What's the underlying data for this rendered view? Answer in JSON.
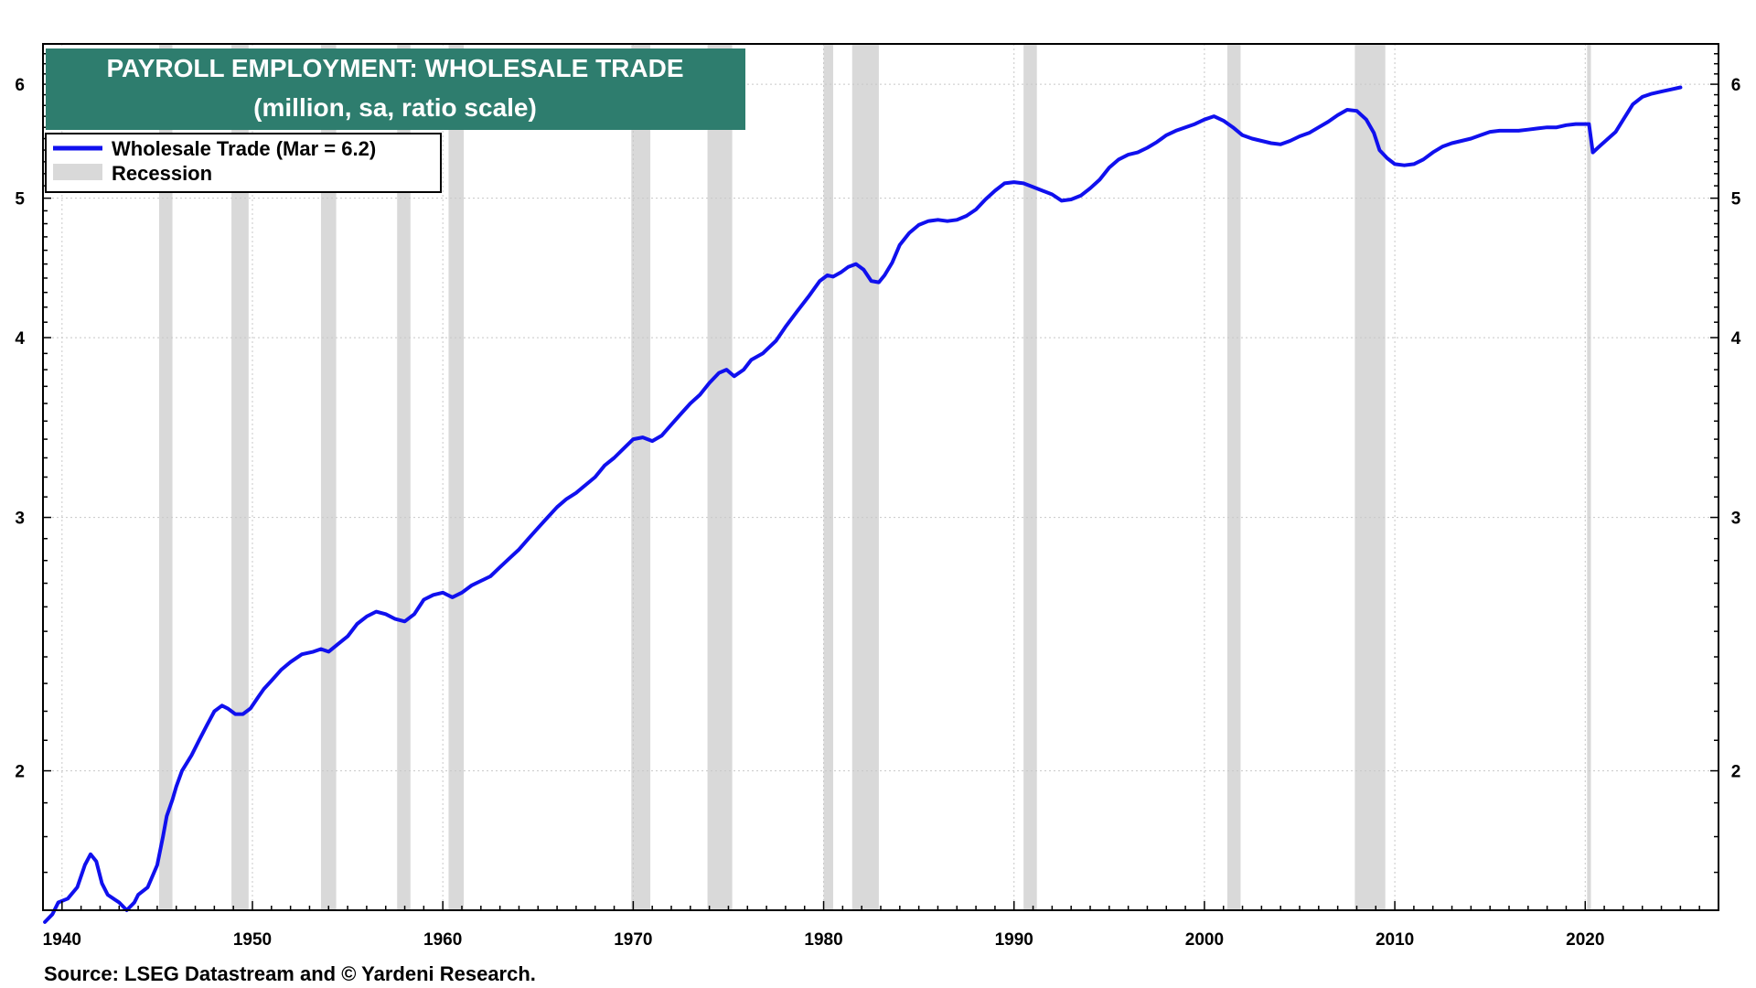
{
  "colors": {
    "line": "#1010ee",
    "recession": "#d9d9d9",
    "title_bg": "#2e7d6e",
    "title_text": "#ffffff",
    "grid": "#c8c8c8"
  },
  "chart_data": {
    "type": "line",
    "title": "PAYROLL EMPLOYMENT: WHOLESALE TRADE",
    "subtitle": "(million, sa, ratio scale)",
    "yscale": "log",
    "xlim": [
      1939.0,
      2027.0
    ],
    "ylim": [
      1.6,
      6.4
    ],
    "x_ticks": [
      1940,
      1950,
      1960,
      1970,
      1980,
      1990,
      2000,
      2010,
      2020
    ],
    "x_tick_labels": [
      "1940",
      "1950",
      "1960",
      "1970",
      "1980",
      "1990",
      "2000",
      "2010",
      "2020"
    ],
    "y_ticks": [
      2,
      3,
      4,
      5,
      6
    ],
    "y_tick_labels": [
      "2",
      "3",
      "4",
      "5",
      "6"
    ],
    "legend": {
      "position": "top-left",
      "entries": [
        {
          "label": "Wholesale Trade (Mar = 6.2)",
          "kind": "line"
        },
        {
          "label": "Recession",
          "kind": "box"
        }
      ]
    },
    "recessions": [
      [
        1945.1,
        1945.8
      ],
      [
        1948.9,
        1949.8
      ],
      [
        1953.6,
        1954.4
      ],
      [
        1957.6,
        1958.3
      ],
      [
        1960.3,
        1961.1
      ],
      [
        1969.9,
        1970.9
      ],
      [
        1973.9,
        1975.2
      ],
      [
        1980.0,
        1980.5
      ],
      [
        1981.5,
        1982.9
      ],
      [
        1990.5,
        1991.2
      ],
      [
        2001.2,
        2001.9
      ],
      [
        2007.9,
        2009.5
      ],
      [
        2020.1,
        2020.3
      ]
    ],
    "series": [
      {
        "name": "Wholesale Trade",
        "x": [
          1939.1,
          1939.5,
          1939.8,
          1940.3,
          1940.8,
          1941.2,
          1941.5,
          1941.8,
          1942.1,
          1942.4,
          1942.7,
          1943.0,
          1943.4,
          1943.8,
          1944.0,
          1944.5,
          1945.0,
          1945.3,
          1945.5,
          1945.8,
          1946.0,
          1946.3,
          1946.8,
          1947.2,
          1947.6,
          1948.0,
          1948.4,
          1948.7,
          1949.1,
          1949.5,
          1949.9,
          1950.3,
          1950.6,
          1951.0,
          1951.5,
          1952.0,
          1952.6,
          1953.2,
          1953.6,
          1954.0,
          1954.5,
          1955.0,
          1955.5,
          1956.0,
          1956.5,
          1957.0,
          1957.5,
          1958.0,
          1958.5,
          1959.0,
          1959.5,
          1960.0,
          1960.5,
          1961.0,
          1961.5,
          1962.0,
          1962.5,
          1963.0,
          1963.5,
          1964.0,
          1964.5,
          1965.0,
          1965.5,
          1966.0,
          1966.5,
          1967.0,
          1967.5,
          1968.0,
          1968.5,
          1969.0,
          1969.5,
          1970.0,
          1970.5,
          1971.0,
          1971.5,
          1972.0,
          1972.5,
          1973.0,
          1973.5,
          1974.0,
          1974.5,
          1974.9,
          1975.3,
          1975.8,
          1976.2,
          1976.8,
          1977.5,
          1978.0,
          1978.6,
          1979.2,
          1979.8,
          1980.2,
          1980.5,
          1980.9,
          1981.3,
          1981.7,
          1982.1,
          1982.5,
          1982.9,
          1983.2,
          1983.6,
          1984.0,
          1984.5,
          1985.0,
          1985.5,
          1986.0,
          1986.5,
          1987.0,
          1987.5,
          1988.0,
          1988.5,
          1989.0,
          1989.5,
          1990.0,
          1990.5,
          1991.0,
          1991.5,
          1992.0,
          1992.5,
          1993.0,
          1993.5,
          1994.0,
          1994.5,
          1995.0,
          1995.5,
          1996.0,
          1996.5,
          1997.0,
          1997.5,
          1998.0,
          1998.5,
          1999.0,
          1999.5,
          2000.0,
          2000.5,
          2001.0,
          2001.5,
          2002.0,
          2002.5,
          2003.0,
          2003.5,
          2004.0,
          2004.5,
          2005.0,
          2005.5,
          2006.0,
          2006.5,
          2007.0,
          2007.5,
          2008.0,
          2008.5,
          2008.9,
          2009.2,
          2009.6,
          2010.0,
          2010.5,
          2011.0,
          2011.5,
          2012.0,
          2012.5,
          2013.0,
          2013.5,
          2014.0,
          2014.5,
          2015.0,
          2015.5,
          2016.0,
          2016.5,
          2017.0,
          2017.5,
          2018.0,
          2018.5,
          2019.0,
          2019.5,
          2020.0,
          2020.2,
          2020.4,
          2020.8,
          2021.2,
          2021.6,
          2022.0,
          2022.5,
          2023.0,
          2023.5,
          2024.0,
          2024.5,
          2025.0
        ],
        "y": [
          1.57,
          1.59,
          1.62,
          1.63,
          1.66,
          1.72,
          1.75,
          1.73,
          1.67,
          1.64,
          1.63,
          1.62,
          1.6,
          1.62,
          1.64,
          1.66,
          1.72,
          1.8,
          1.86,
          1.91,
          1.95,
          2.0,
          2.05,
          2.1,
          2.15,
          2.2,
          2.22,
          2.21,
          2.19,
          2.19,
          2.21,
          2.25,
          2.28,
          2.31,
          2.35,
          2.38,
          2.41,
          2.42,
          2.43,
          2.42,
          2.45,
          2.48,
          2.53,
          2.56,
          2.58,
          2.57,
          2.55,
          2.54,
          2.57,
          2.63,
          2.65,
          2.66,
          2.64,
          2.66,
          2.69,
          2.71,
          2.73,
          2.77,
          2.81,
          2.85,
          2.9,
          2.95,
          3.0,
          3.05,
          3.09,
          3.12,
          3.16,
          3.2,
          3.26,
          3.3,
          3.35,
          3.4,
          3.41,
          3.39,
          3.42,
          3.48,
          3.54,
          3.6,
          3.65,
          3.72,
          3.78,
          3.8,
          3.76,
          3.8,
          3.86,
          3.9,
          3.98,
          4.07,
          4.17,
          4.27,
          4.38,
          4.42,
          4.41,
          4.44,
          4.48,
          4.5,
          4.46,
          4.38,
          4.37,
          4.42,
          4.51,
          4.64,
          4.73,
          4.79,
          4.82,
          4.83,
          4.82,
          4.83,
          4.86,
          4.91,
          4.99,
          5.06,
          5.12,
          5.13,
          5.12,
          5.09,
          5.06,
          5.03,
          4.98,
          4.99,
          5.02,
          5.08,
          5.15,
          5.25,
          5.32,
          5.36,
          5.38,
          5.42,
          5.47,
          5.53,
          5.57,
          5.6,
          5.63,
          5.67,
          5.7,
          5.66,
          5.6,
          5.53,
          5.5,
          5.48,
          5.46,
          5.45,
          5.48,
          5.52,
          5.55,
          5.6,
          5.65,
          5.71,
          5.76,
          5.75,
          5.67,
          5.55,
          5.4,
          5.33,
          5.28,
          5.27,
          5.28,
          5.32,
          5.38,
          5.43,
          5.46,
          5.48,
          5.5,
          5.53,
          5.56,
          5.57,
          5.57,
          5.57,
          5.58,
          5.59,
          5.6,
          5.6,
          5.62,
          5.63,
          5.63,
          5.63,
          5.38,
          5.44,
          5.5,
          5.56,
          5.67,
          5.81,
          5.88,
          5.91,
          5.93,
          5.95,
          5.97
        ]
      }
    ],
    "source": "Source: LSEG Datastream and © Yardeni Research."
  }
}
